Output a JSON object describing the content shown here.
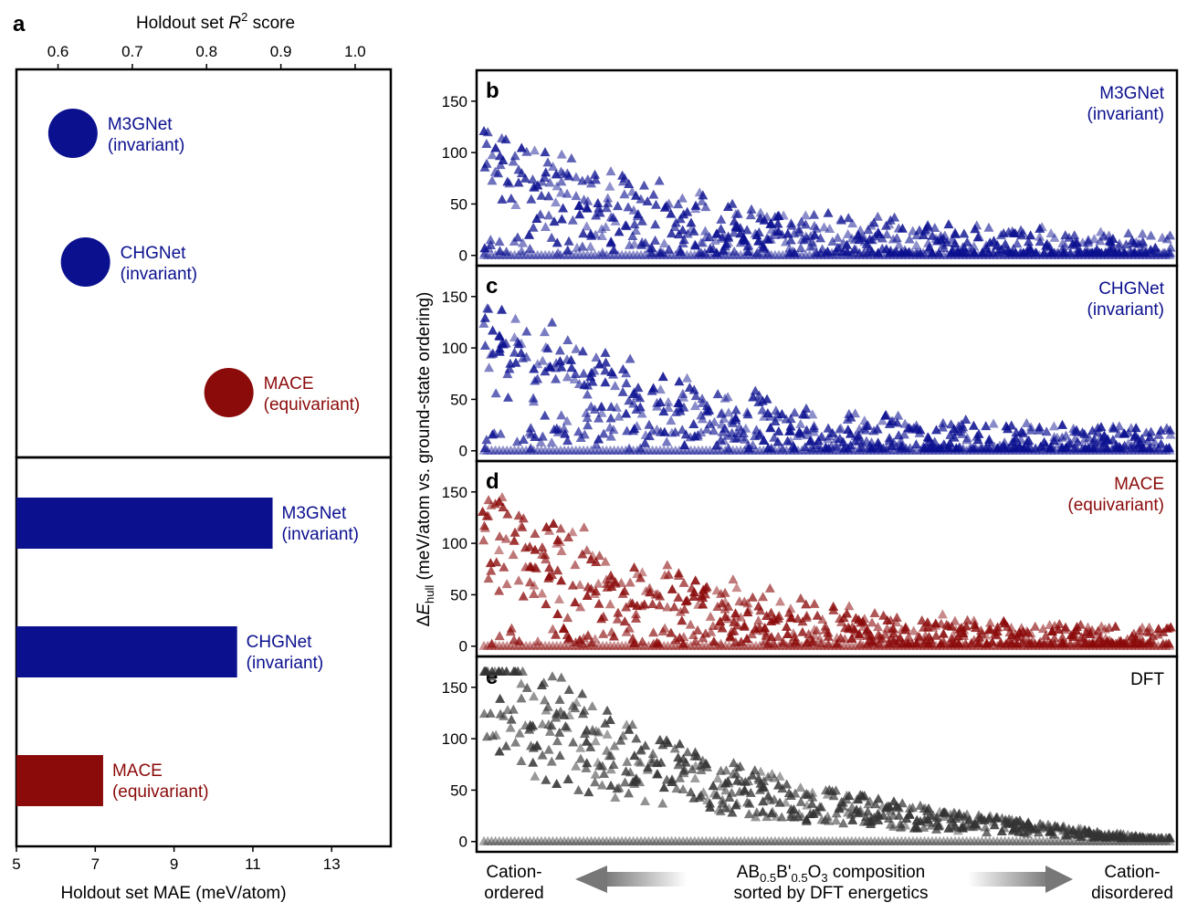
{
  "colors": {
    "invariant": "#0b108f",
    "equivariant": "#8b0a0a",
    "dft": "#333333",
    "arrow": "#777777"
  },
  "chart_data": [
    {
      "type": "scatter",
      "panel_label": "a",
      "xlabel_top_prefix": "Holdout set ",
      "xlabel_top_var": "R",
      "xlabel_top_sup": "2",
      "xlabel_top_suffix": " score",
      "xlim": [
        0.544,
        1.048
      ],
      "xticks": [
        "0.6",
        "0.7",
        "0.8",
        "0.9",
        "1.0"
      ],
      "series": [
        {
          "name": "M3GNet",
          "subname": "(invariant)",
          "r2": 0.62,
          "color_key": "invariant"
        },
        {
          "name": "CHGNet",
          "subname": "(invariant)",
          "r2": 0.637,
          "color_key": "invariant"
        },
        {
          "name": "MACE",
          "subname": "(equivariant)",
          "r2": 0.83,
          "color_key": "equivariant"
        }
      ]
    },
    {
      "type": "bar",
      "orientation": "horizontal",
      "xlabel": "Holdout set MAE (meV/atom)",
      "xlim": [
        5,
        14.5
      ],
      "xticks": [
        "5",
        "7",
        "9",
        "11",
        "13"
      ],
      "categories": [
        "M3GNet",
        "CHGNet",
        "MACE"
      ],
      "subcategories": [
        "(invariant)",
        "(invariant)",
        "(equivariant)"
      ],
      "values": [
        11.5,
        10.6,
        7.2
      ],
      "color_keys": [
        "invariant",
        "invariant",
        "equivariant"
      ]
    },
    {
      "type": "scatter",
      "marker": "triangle",
      "shared_ylabel_prefix": "Δ",
      "shared_ylabel_var": "E",
      "shared_ylabel_sub": "hull",
      "shared_ylabel_suffix": " (meV/atom vs. ground-state ordering)",
      "xlabel_main_line1_parts": [
        "AB",
        "0.5",
        "B'",
        "0.5",
        "O",
        "3",
        " composition"
      ],
      "xlabel_main_line2": "sorted by DFT energetics",
      "xlabel_left": [
        "Cation-",
        "ordered"
      ],
      "xlabel_right": [
        "Cation-",
        "disordered"
      ],
      "ylim": [
        -10,
        180
      ],
      "yticks": [
        "0",
        "50",
        "100",
        "150"
      ],
      "n_compositions": 180,
      "panels": [
        {
          "label": "b",
          "model": "M3GNet",
          "note": "(invariant)",
          "color_key": "invariant"
        },
        {
          "label": "c",
          "model": "CHGNet",
          "note": "(invariant)",
          "color_key": "invariant"
        },
        {
          "label": "d",
          "model": "MACE",
          "note": "(equivariant)",
          "color_key": "equivariant"
        },
        {
          "label": "e",
          "model": "DFT",
          "note": "",
          "color_key": "dft"
        }
      ]
    }
  ]
}
